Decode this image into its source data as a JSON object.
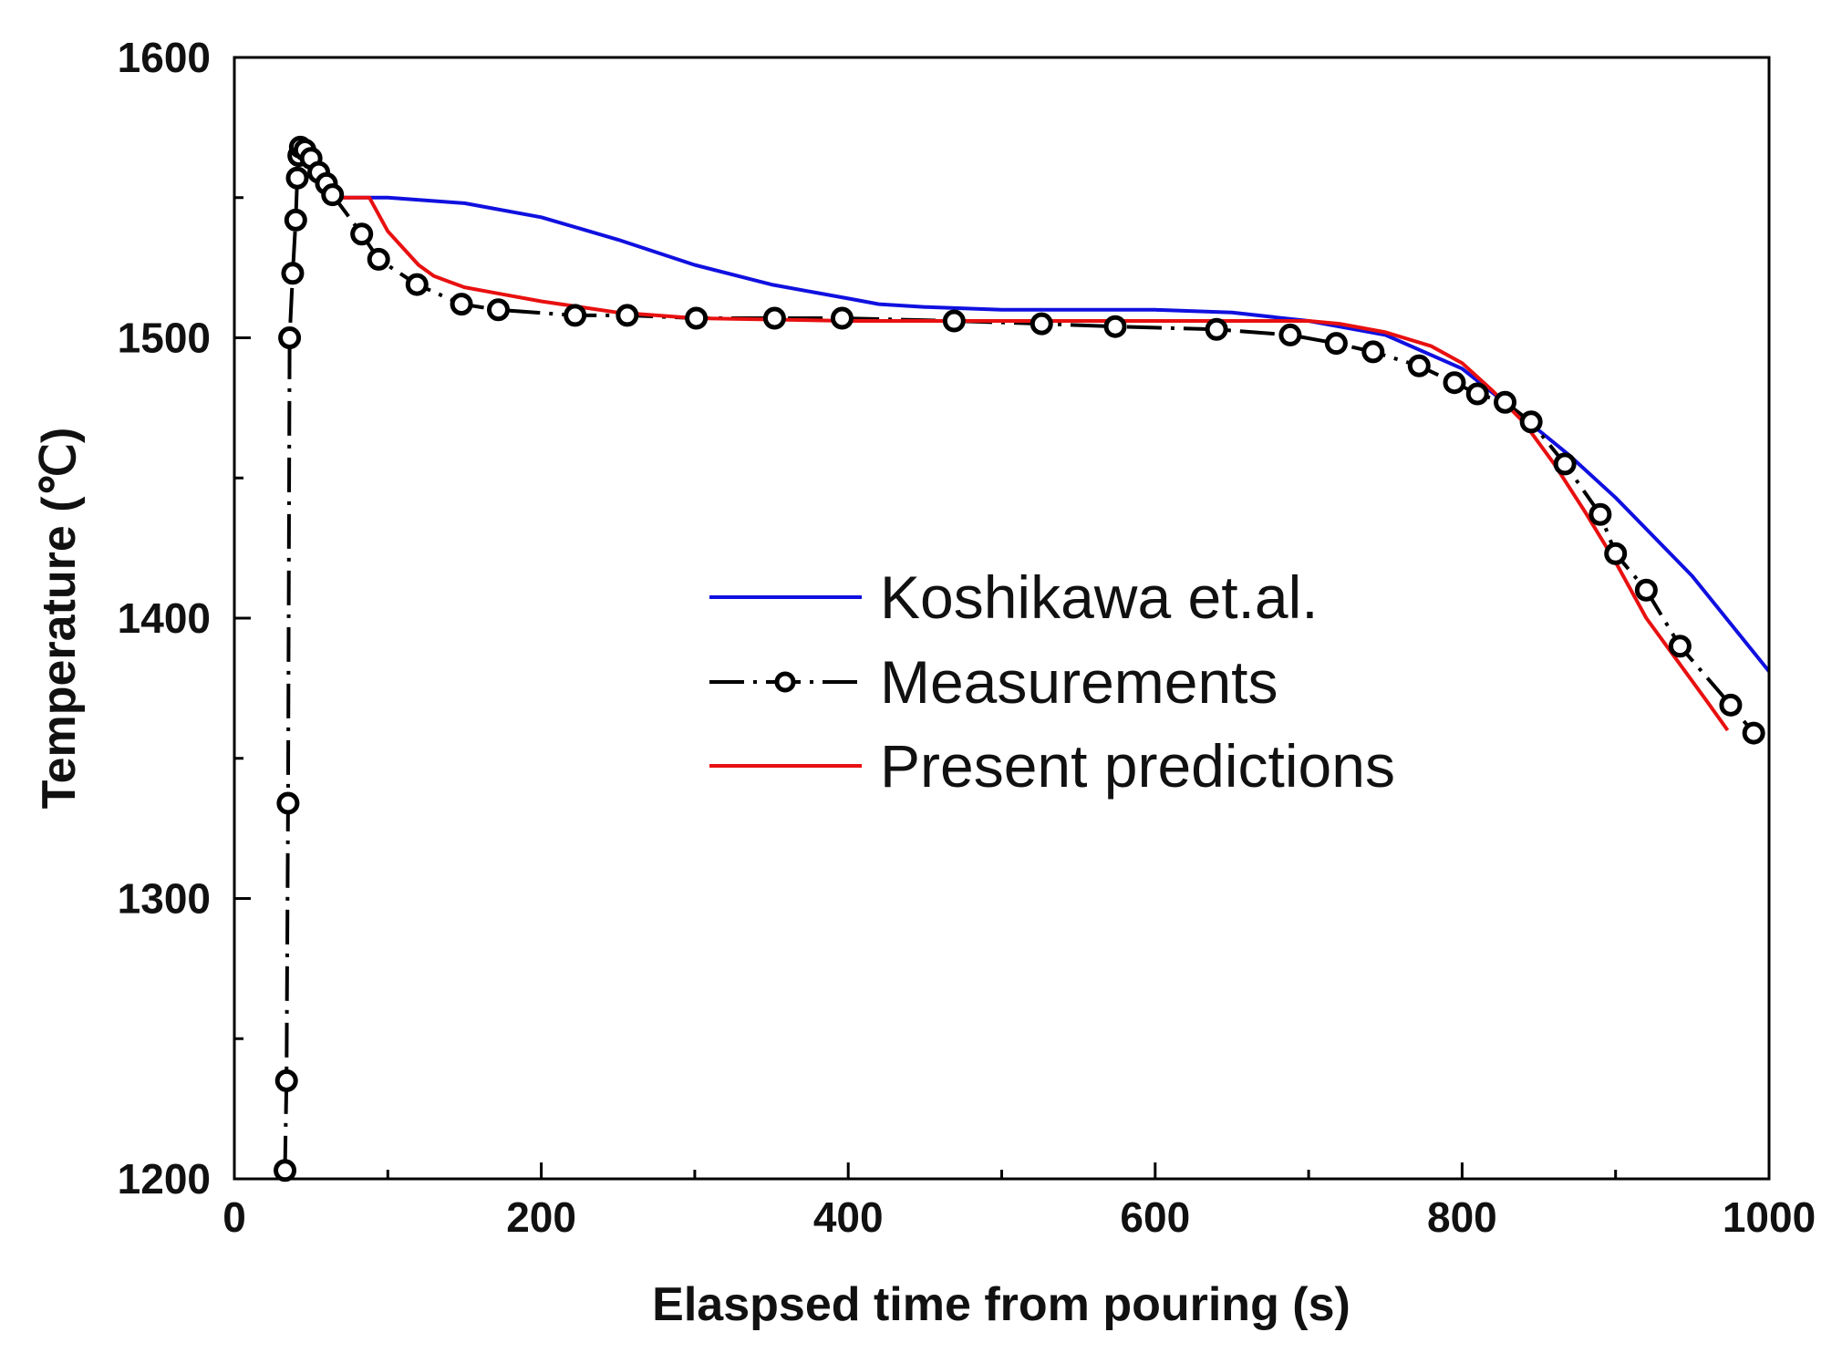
{
  "chart_data": {
    "type": "line",
    "title": "",
    "xlabel": "Elaspsed time from pouring (s)",
    "ylabel": "Temperature (℃)",
    "xlim": [
      0,
      1000
    ],
    "ylim": [
      1200,
      1600
    ],
    "x_ticks": [
      0,
      200,
      400,
      600,
      800,
      1000
    ],
    "x_tick_labels": [
      "0",
      "200",
      "400",
      "600",
      "800",
      "1000"
    ],
    "x_minor_ticks": [
      100,
      300,
      500,
      700,
      900
    ],
    "y_ticks": [
      1200,
      1300,
      1400,
      1500,
      1600
    ],
    "y_tick_labels": [
      "1200",
      "1300",
      "1400",
      "1500",
      "1600"
    ],
    "y_minor_ticks": [
      1250,
      1350,
      1450,
      1550
    ],
    "legend_position": "center-right",
    "series": [
      {
        "name": "Koshikawa et.al.",
        "color": "#1010e0",
        "style": "line",
        "x": [
          70,
          100,
          150,
          200,
          250,
          300,
          350,
          400,
          420,
          450,
          500,
          550,
          600,
          650,
          700,
          750,
          800,
          830,
          850,
          870,
          900,
          950,
          1000
        ],
        "y": [
          1550,
          1550,
          1548,
          1543,
          1535,
          1526,
          1519,
          1514,
          1512,
          1511,
          1510,
          1510,
          1510,
          1509,
          1506,
          1501,
          1489,
          1476,
          1467,
          1458,
          1443,
          1415,
          1381
        ]
      },
      {
        "name": "Measurements",
        "color": "#000000",
        "style": "dash-dot-circle",
        "x": [
          33,
          34,
          35,
          36,
          38,
          40,
          41,
          42,
          43,
          46,
          50,
          55,
          60,
          64,
          83,
          94,
          119,
          148,
          172,
          222,
          256,
          301,
          352,
          396,
          469,
          526,
          574,
          640,
          688,
          718,
          742,
          772,
          795,
          810,
          828,
          845,
          867,
          890,
          900,
          920,
          942,
          975,
          990
        ],
        "y": [
          1203,
          1235,
          1334,
          1500,
          1523,
          1542,
          1557,
          1565,
          1568,
          1567,
          1564,
          1559,
          1555,
          1551,
          1537,
          1528,
          1519,
          1512,
          1510,
          1508,
          1508,
          1507,
          1507,
          1507,
          1506,
          1505,
          1504,
          1503,
          1501,
          1498,
          1495,
          1490,
          1484,
          1480,
          1477,
          1470,
          1455,
          1437,
          1423,
          1410,
          1390,
          1369,
          1359
        ]
      },
      {
        "name": "Present predictions",
        "color": "#e81010",
        "style": "line",
        "x": [
          70,
          88,
          100,
          110,
          120,
          130,
          140,
          150,
          170,
          200,
          250,
          300,
          400,
          500,
          600,
          700,
          720,
          750,
          780,
          800,
          820,
          840,
          860,
          880,
          900,
          920,
          940,
          960,
          973
        ],
        "y": [
          1550,
          1550,
          1538,
          1532,
          1526,
          1522,
          1520,
          1518,
          1516,
          1513,
          1509,
          1507,
          1506,
          1506,
          1506,
          1506,
          1505,
          1502,
          1497,
          1491,
          1481,
          1470,
          1455,
          1438,
          1420,
          1400,
          1385,
          1370,
          1360
        ]
      }
    ]
  }
}
